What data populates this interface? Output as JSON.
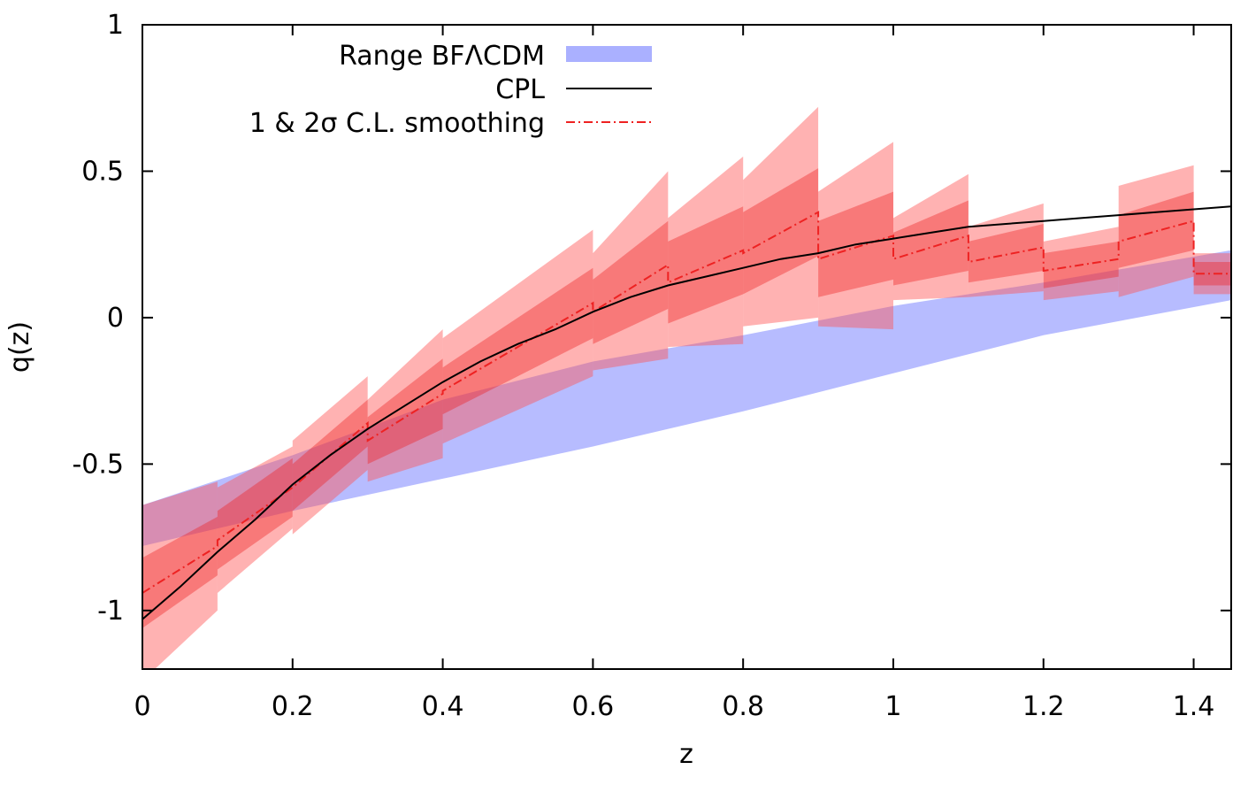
{
  "chart_data": {
    "type": "line",
    "xlabel": "z",
    "ylabel": "q(z)",
    "xlim": [
      0,
      1.45
    ],
    "ylim": [
      -1.2,
      1
    ],
    "x_ticks": [
      0,
      0.2,
      0.4,
      0.6,
      0.8,
      1,
      1.2,
      1.4
    ],
    "x_tick_labels": [
      "0",
      "0.2",
      "0.4",
      "0.6",
      "0.8",
      "1",
      "1.2",
      "1.4"
    ],
    "y_ticks": [
      1,
      0.5,
      0,
      -0.5,
      -1
    ],
    "y_tick_labels": [
      "1",
      "0.5",
      "0",
      "-0.5",
      "-1"
    ],
    "legend": {
      "position": "top-left",
      "entries": [
        {
          "label": "Range BFΛCDM",
          "style": "band",
          "color": "#aab0ff"
        },
        {
          "label": "CPL",
          "style": "solid",
          "color": "#000000"
        },
        {
          "label": "1 & 2σ C.L. smoothing",
          "style": "dashdot",
          "color": "#ee2222"
        }
      ]
    },
    "band_lcdm": {
      "name": "Range BFΛCDM",
      "color": "#aab0ff",
      "x": [
        0.0,
        0.2,
        0.4,
        0.6,
        0.8,
        1.0,
        1.2,
        1.45
      ],
      "lower": [
        -0.78,
        -0.66,
        -0.55,
        -0.44,
        -0.32,
        -0.19,
        -0.06,
        0.06
      ],
      "upper": [
        -0.64,
        -0.47,
        -0.28,
        -0.15,
        -0.06,
        0.04,
        0.12,
        0.23
      ]
    },
    "cpl": {
      "name": "CPL",
      "color": "#000000",
      "x": [
        0.0,
        0.05,
        0.1,
        0.15,
        0.2,
        0.25,
        0.3,
        0.35,
        0.4,
        0.45,
        0.5,
        0.55,
        0.6,
        0.65,
        0.7,
        0.75,
        0.8,
        0.85,
        0.9,
        0.95,
        1.0,
        1.05,
        1.1,
        1.15,
        1.2,
        1.25,
        1.3,
        1.35,
        1.4,
        1.45
      ],
      "y": [
        -1.03,
        -0.92,
        -0.8,
        -0.69,
        -0.57,
        -0.47,
        -0.38,
        -0.3,
        -0.22,
        -0.15,
        -0.09,
        -0.04,
        0.02,
        0.07,
        0.11,
        0.14,
        0.17,
        0.2,
        0.22,
        0.25,
        0.27,
        0.29,
        0.31,
        0.32,
        0.33,
        0.34,
        0.35,
        0.36,
        0.37,
        0.38
      ]
    },
    "smoothing": {
      "name": "1 & 2σ C.L. smoothing",
      "color": "#ee2222",
      "segments": [
        {
          "x0": 0.0,
          "x1": 0.1,
          "mean": [
            -0.94,
            -0.78
          ],
          "s1": [
            0.12,
            0.1
          ],
          "s2": [
            0.3,
            0.22
          ]
        },
        {
          "x0": 0.1,
          "x1": 0.2,
          "mean": [
            -0.76,
            -0.58
          ],
          "s1": [
            0.1,
            0.1
          ],
          "s2": [
            0.18,
            0.14
          ]
        },
        {
          "x0": 0.2,
          "x1": 0.3,
          "mean": [
            -0.58,
            -0.36
          ],
          "s1": [
            0.08,
            0.08
          ],
          "s2": [
            0.16,
            0.16
          ]
        },
        {
          "x0": 0.3,
          "x1": 0.4,
          "mean": [
            -0.42,
            -0.26
          ],
          "s1": [
            0.08,
            0.12
          ],
          "s2": [
            0.14,
            0.22
          ]
        },
        {
          "x0": 0.4,
          "x1": 0.6,
          "mean": [
            -0.25,
            0.05
          ],
          "s1": [
            0.08,
            0.12
          ],
          "s2": [
            0.18,
            0.25
          ]
        },
        {
          "x0": 0.6,
          "x1": 0.7,
          "mean": [
            0.02,
            0.18
          ],
          "s1": [
            0.11,
            0.15
          ],
          "s2": [
            0.2,
            0.32
          ]
        },
        {
          "x0": 0.7,
          "x1": 0.8,
          "mean": [
            0.12,
            0.23
          ],
          "s1": [
            0.14,
            0.15
          ],
          "s2": [
            0.22,
            0.32
          ]
        },
        {
          "x0": 0.8,
          "x1": 0.9,
          "mean": [
            0.22,
            0.36
          ],
          "s1": [
            0.14,
            0.15
          ],
          "s2": [
            0.25,
            0.36
          ]
        },
        {
          "x0": 0.9,
          "x1": 1.0,
          "mean": [
            0.2,
            0.28
          ],
          "s1": [
            0.13,
            0.15
          ],
          "s2": [
            0.23,
            0.32
          ]
        },
        {
          "x0": 1.0,
          "x1": 1.1,
          "mean": [
            0.2,
            0.28
          ],
          "s1": [
            0.09,
            0.12
          ],
          "s2": [
            0.14,
            0.21
          ]
        },
        {
          "x0": 1.1,
          "x1": 1.2,
          "mean": [
            0.19,
            0.24
          ],
          "s1": [
            0.07,
            0.08
          ],
          "s2": [
            0.12,
            0.15
          ]
        },
        {
          "x0": 1.2,
          "x1": 1.3,
          "mean": [
            0.16,
            0.2
          ],
          "s1": [
            0.06,
            0.06
          ],
          "s2": [
            0.1,
            0.11
          ]
        },
        {
          "x0": 1.3,
          "x1": 1.4,
          "mean": [
            0.26,
            0.33
          ],
          "s1": [
            0.09,
            0.1
          ],
          "s2": [
            0.19,
            0.19
          ]
        },
        {
          "x0": 1.4,
          "x1": 1.45,
          "mean": [
            0.15,
            0.15
          ],
          "s1": [
            0.04,
            0.04
          ],
          "s2": [
            0.07,
            0.07
          ]
        }
      ]
    }
  }
}
